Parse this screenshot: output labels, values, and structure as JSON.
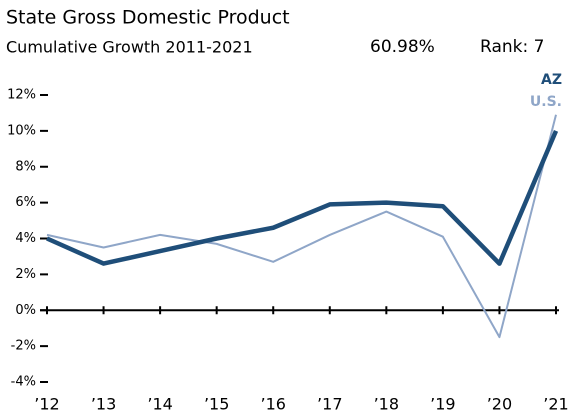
{
  "chart_data": {
    "type": "line",
    "title": "State Gross Domestic Product",
    "subtitle": "Cumulative Growth 2011-2021",
    "growth": "60.98%",
    "rank": "Rank: 7",
    "categories": [
      "’12",
      "’13",
      "’14",
      "’15",
      "’16",
      "’17",
      "’18",
      "’19",
      "’20",
      "’21"
    ],
    "series": [
      {
        "name": "AZ",
        "color": "#1f4e79",
        "values": [
          4.0,
          2.6,
          3.3,
          4.0,
          4.6,
          5.9,
          6.0,
          5.8,
          2.6,
          10.0
        ]
      },
      {
        "name": "U.S.",
        "color": "#8fa6c8",
        "values": [
          4.2,
          3.5,
          4.2,
          3.7,
          2.7,
          4.2,
          5.5,
          4.1,
          -1.5,
          10.9
        ]
      }
    ],
    "ylim": [
      -4,
      12
    ],
    "yticks": [
      {
        "value": -4,
        "label": "-4%"
      },
      {
        "value": -2,
        "label": "-2%"
      },
      {
        "value": 0,
        "label": "0%"
      },
      {
        "value": 2,
        "label": "2%"
      },
      {
        "value": 4,
        "label": "4%"
      },
      {
        "value": 6,
        "label": "6%"
      },
      {
        "value": 8,
        "label": "8%"
      },
      {
        "value": 10,
        "label": "10%"
      },
      {
        "value": 12,
        "label": "12%"
      }
    ],
    "grid": false
  }
}
